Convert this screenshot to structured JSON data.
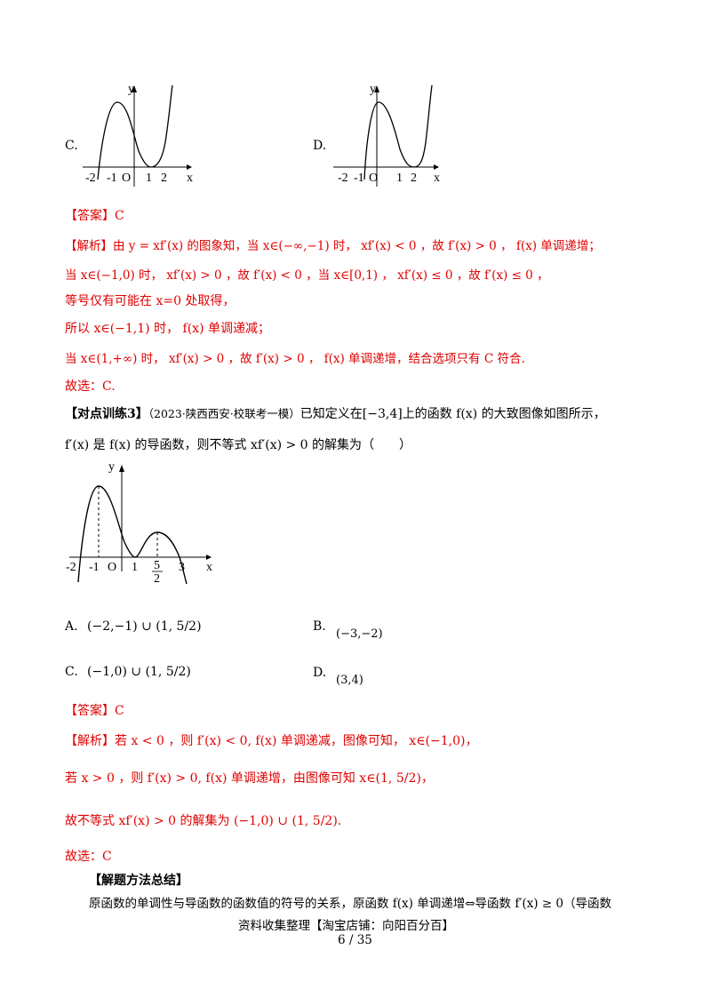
{
  "q2": {
    "option_c_label": "C.",
    "option_d_label": "D.",
    "graph_c": {
      "axis_y": "y",
      "axis_x": "x",
      "origin": "O",
      "ticks": [
        "-2",
        "-1",
        "1",
        "2"
      ]
    },
    "graph_d": {
      "axis_y": "y",
      "axis_x": "x",
      "origin": "O",
      "ticks": [
        "-2",
        "-1",
        "1",
        "2"
      ]
    },
    "answer": "【答案】C",
    "analysis": {
      "line1": "【解析】由 y = xf′(x) 的图象知，当 x∈(−∞,−1) 时， xf′(x) < 0 ，故 f′(x) > 0 ， f(x) 单调递增；",
      "line2": "当 x∈(−1,0) 时， xf′(x) > 0 ，故 f′(x) < 0 ，当 x∈[0,1) ， xf′(x) ≤ 0 ，故 f′(x) ≤ 0 ，",
      "line3": "等号仅有可能在 x=0 处取得，",
      "line4": "所以 x∈(−1,1) 时， f(x) 单调递减；",
      "line5": "当 x∈(1,+∞) 时， xf′(x) > 0 ，故 f′(x) > 0 ， f(x) 单调递增，结合选项只有 C 符合.",
      "choice": "故选：C."
    }
  },
  "q3": {
    "title": "【对点训练3】",
    "source": "（2023·陕西西安·校联考一模）",
    "stem1": "已知定义在[−3,4]上的函数 f(x) 的大致图像如图所示，",
    "stem2": "f′(x) 是 f(x) 的导函数，则不等式 xf′(x) > 0 的解集为（　　）",
    "graph": {
      "axis_y": "y",
      "axis_x": "x",
      "origin": "O",
      "ticks": [
        "-2",
        "-1",
        "1",
        "5",
        "2",
        "3"
      ]
    },
    "options": {
      "a_label": "A.",
      "a_text": "(−2,−1) ∪ (1, 5/2)",
      "b_label": "B.",
      "b_text": "(−3,−2)",
      "c_label": "C.",
      "c_text": "(−1,0) ∪ (1, 5/2)",
      "d_label": "D.",
      "d_text": "(3,4)"
    },
    "answer": "【答案】C",
    "analysis": {
      "line1": "【解析】若 x < 0 ，则 f′(x) < 0, f(x) 单调递减，图像可知， x∈(−1,0)，",
      "line2": "若 x > 0 ，则 f′(x) > 0, f(x) 单调递增，由图像可知 x∈(1, 5/2)，",
      "line3": "故不等式 xf′(x) > 0 的解集为 (−1,0) ∪ (1, 5/2).",
      "choice": "故选：C"
    }
  },
  "summary": {
    "title": "【解题方法总结】",
    "text": "原函数的单调性与导函数的函数值的符号的关系，原函数 f(x) 单调递增⇔导函数 f′(x) ≥ 0（导函数"
  },
  "footer": {
    "source": "资料收集整理【淘宝店铺：向阳百分百】",
    "page": "6 / 35"
  }
}
